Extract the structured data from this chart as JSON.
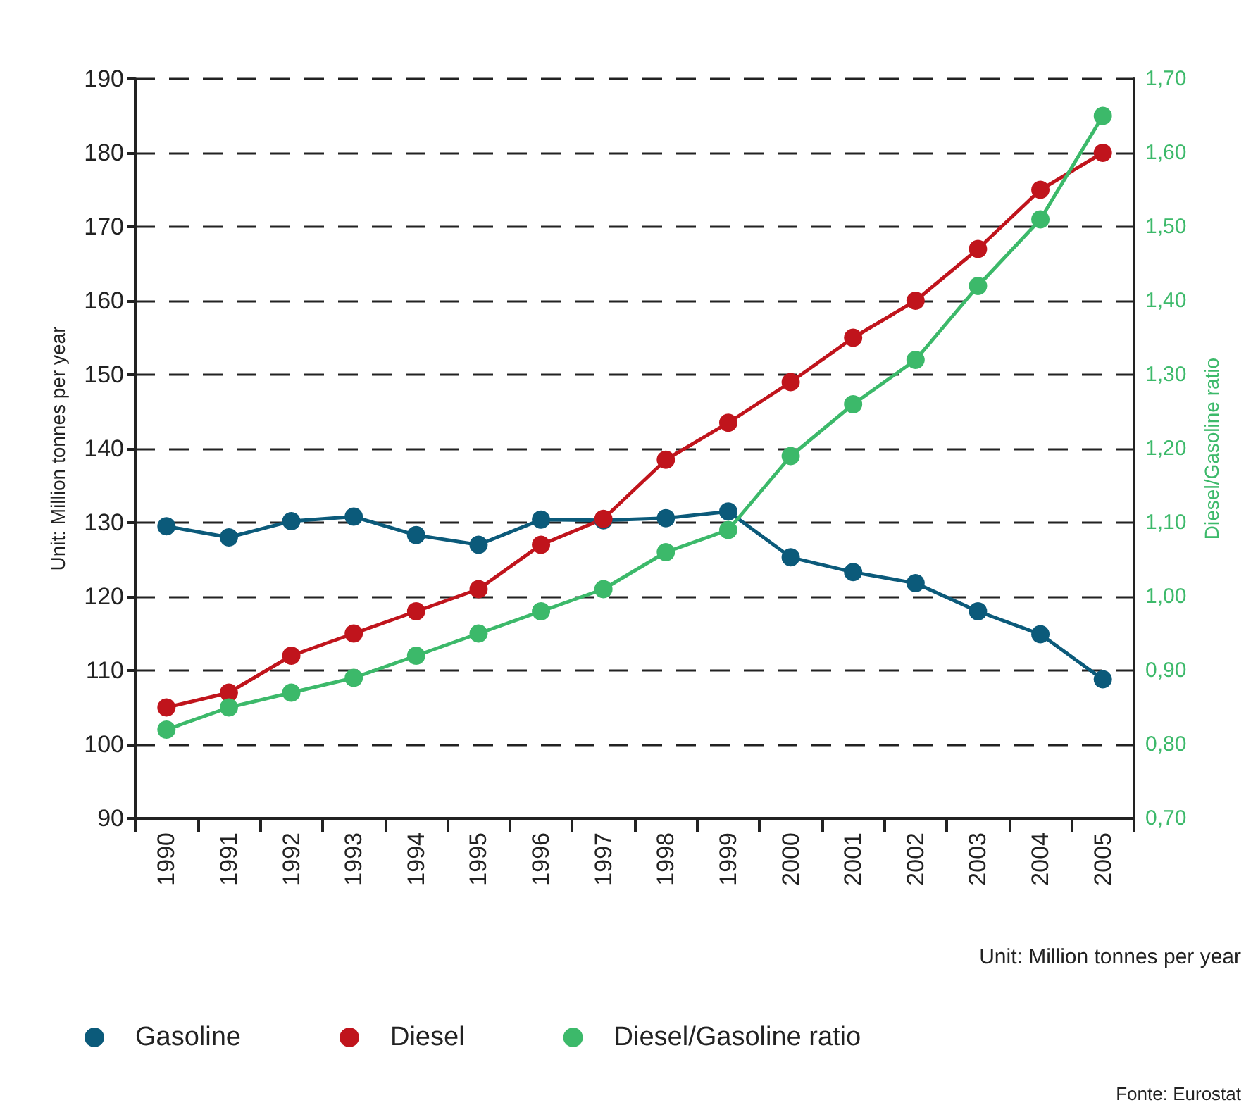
{
  "chart_data": {
    "type": "line",
    "categories": [
      "1990",
      "1991",
      "1992",
      "1993",
      "1994",
      "1995",
      "1996",
      "1997",
      "1998",
      "1999",
      "2000",
      "2001",
      "2002",
      "2003",
      "2004",
      "2005"
    ],
    "series": [
      {
        "name": "Gasoline",
        "color": "#0b5a7a",
        "values": [
          129.5,
          128,
          130.2,
          130.8,
          128.3,
          127,
          130.4,
          130.3,
          130.6,
          131.5,
          125.3,
          123.3,
          121.8,
          118,
          114.9,
          108.8
        ]
      },
      {
        "name": "Diesel",
        "color": "#c0141c",
        "values": [
          105,
          107,
          112,
          115,
          118,
          121,
          127,
          130.5,
          138.5,
          143.5,
          149,
          155,
          160,
          167,
          175,
          180
        ]
      },
      {
        "name": "Diesel/Gasoline ratio",
        "color": "#3cb96a",
        "axis": "y2",
        "values": [
          0.82,
          0.85,
          0.87,
          0.89,
          0.92,
          0.95,
          0.98,
          1.01,
          1.06,
          1.09,
          1.19,
          1.26,
          1.32,
          1.42,
          1.51,
          1.65
        ]
      }
    ],
    "ylabel": "Unit: Million tonnes per year",
    "y2label": "Diesel/Gasoline ratio",
    "ylim": [
      90,
      190
    ],
    "yticks": [
      90,
      100,
      110,
      120,
      130,
      140,
      150,
      160,
      170,
      180,
      190
    ],
    "y2lim": [
      0.7,
      1.7
    ],
    "y2ticks": [
      {
        "value": 0.7,
        "label": "0,70"
      },
      {
        "value": 0.8,
        "label": "0,80"
      },
      {
        "value": 0.9,
        "label": "0,90"
      },
      {
        "value": 1.0,
        "label": "1,00"
      },
      {
        "value": 1.1,
        "label": "1,10"
      },
      {
        "value": 1.2,
        "label": "1,20"
      },
      {
        "value": 1.3,
        "label": "1,30"
      },
      {
        "value": 1.4,
        "label": "1,40"
      },
      {
        "value": 1.5,
        "label": "1,50"
      },
      {
        "value": 1.6,
        "label": "1,60"
      },
      {
        "value": 1.7,
        "label": "1,70"
      }
    ],
    "annotations": [
      "Unit: Million tonnes per year",
      "Fonte: Eurostat"
    ],
    "grid": "y",
    "legend": "bottom",
    "marker": "circle",
    "line_style": "solid"
  }
}
